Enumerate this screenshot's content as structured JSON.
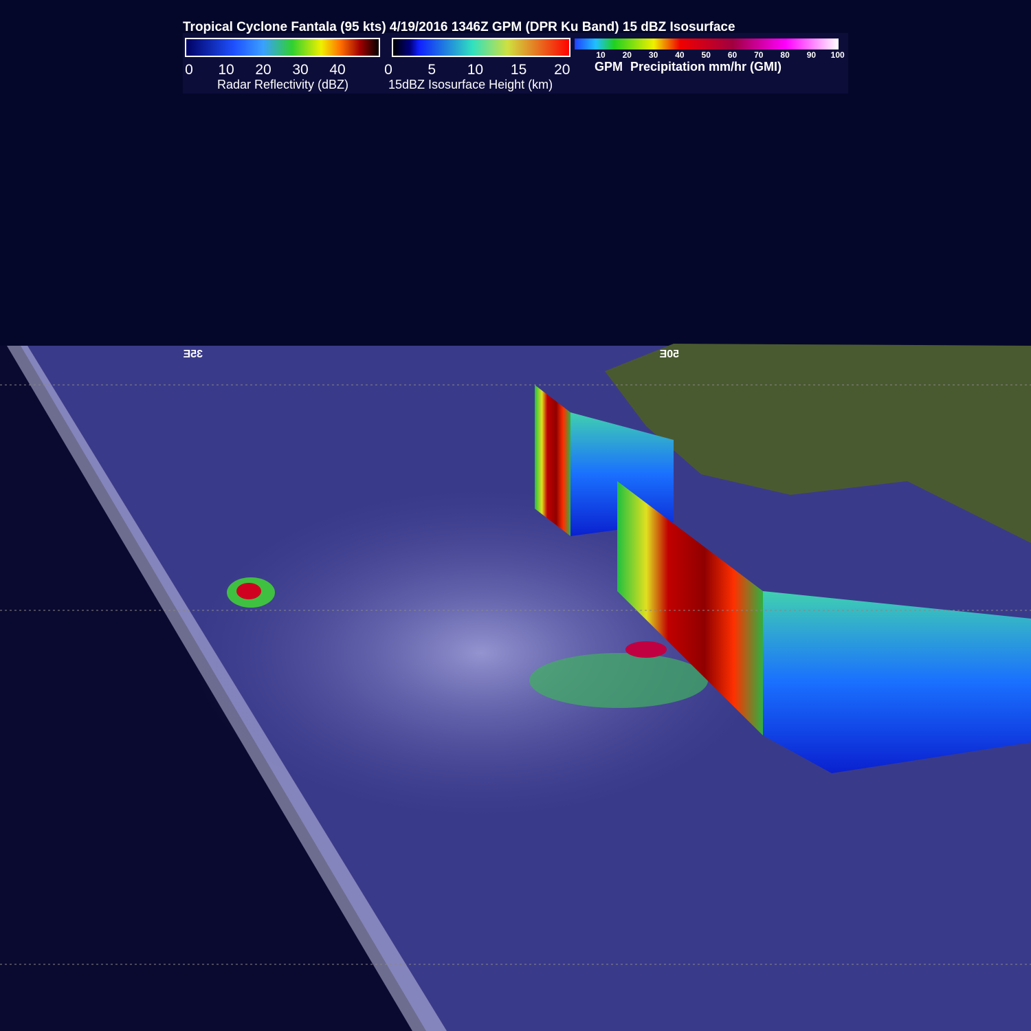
{
  "header": {
    "title": "Tropical Cyclone Fantala (95 kts) 4/19/2016 1346Z GPM (DPR Ku Band) 15 dBZ Isosurface"
  },
  "legends": [
    {
      "ticks": [
        0,
        10,
        20,
        30,
        40
      ],
      "label": "Radar Reflectivity (dBZ)"
    },
    {
      "ticks": [
        0,
        5,
        10,
        15,
        20
      ],
      "label": "15dBZ Isosurface Height (km)"
    },
    {
      "ticks": [
        10,
        20,
        30,
        40,
        50,
        60,
        70,
        80,
        90,
        100
      ],
      "label_prefix": "GPM",
      "label": "Precipitation mm/hr (GMI)"
    }
  ],
  "map_labels": [
    "35E",
    "50E"
  ]
}
